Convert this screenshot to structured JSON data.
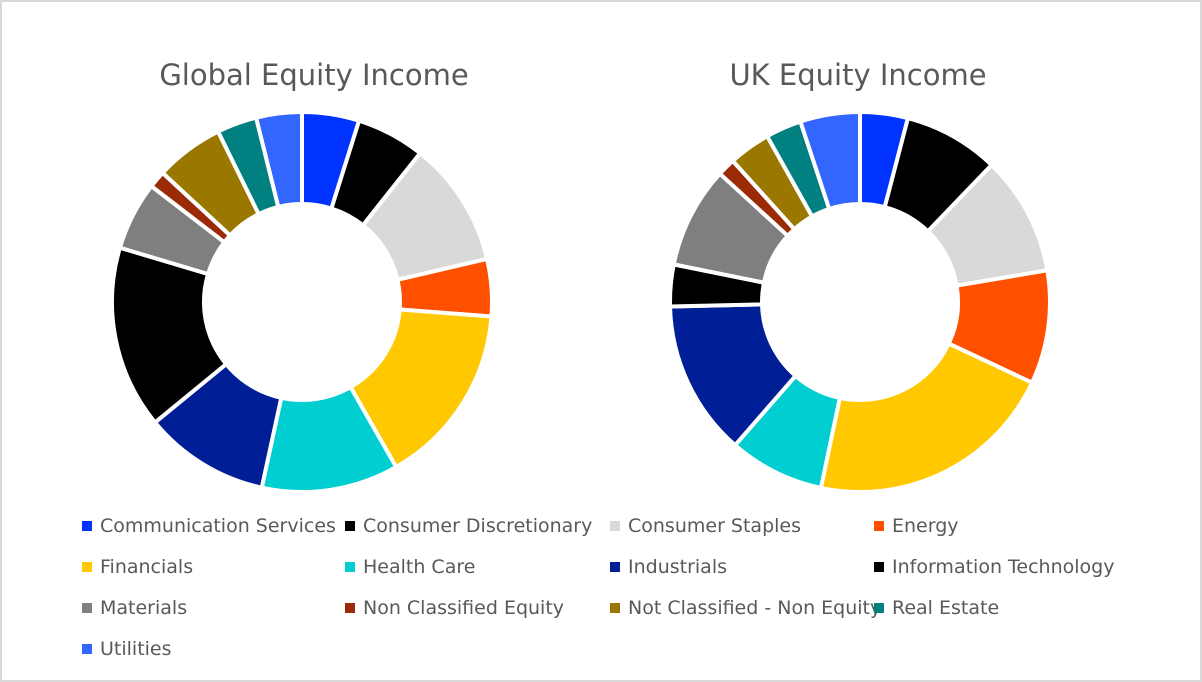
{
  "chart_data": [
    {
      "type": "donut",
      "title": "Global Equity Income",
      "values": [
        5,
        6,
        11,
        5,
        16,
        12,
        11,
        16,
        6,
        1.5,
        6,
        3.5,
        4
      ],
      "unit": "%"
    },
    {
      "type": "donut",
      "title": "UK Equity Income",
      "values": [
        4,
        8,
        10,
        9.5,
        21,
        8,
        13,
        3.5,
        8.5,
        1.5,
        3.5,
        3,
        5
      ],
      "unit": "%"
    }
  ],
  "legend": {
    "items": [
      {
        "label": "Communication Services",
        "color": "#0033ff"
      },
      {
        "label": "Consumer Discretionary",
        "color": "#000000"
      },
      {
        "label": "Consumer Staples",
        "color": "#d9d9d9"
      },
      {
        "label": "Energy",
        "color": "#ff5000"
      },
      {
        "label": "Financials",
        "color": "#ffc800"
      },
      {
        "label": "Health Care",
        "color": "#00ced1"
      },
      {
        "label": "Industrials",
        "color": "#001e96"
      },
      {
        "label": "Information Technology",
        "color": "#000000"
      },
      {
        "label": "Materials",
        "color": "#7f7f7f"
      },
      {
        "label": "Non Classified Equity",
        "color": "#9b2a06"
      },
      {
        "label": "Not Classified - Non Equity",
        "color": "#9a7800"
      },
      {
        "label": "Real Estate",
        "color": "#008080"
      },
      {
        "label": "Utilities",
        "color": "#3366ff"
      }
    ]
  }
}
